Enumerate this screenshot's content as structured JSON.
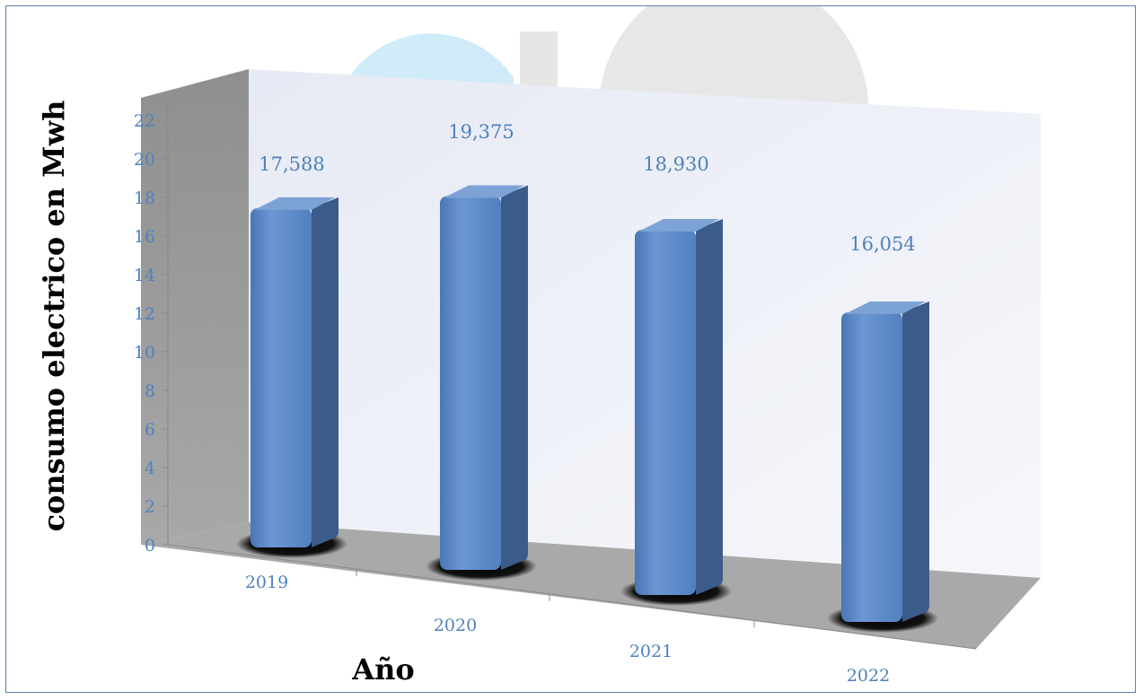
{
  "chart_data": {
    "type": "bar",
    "style": "3d-column",
    "categories": [
      "2019",
      "2020",
      "2021",
      "2022"
    ],
    "values": [
      17.588,
      19.375,
      18.93,
      16.054
    ],
    "data_labels": [
      "17,588",
      "19,375",
      "18,930",
      "16,054"
    ],
    "xlabel": "Año",
    "ylabel": "consumo electrico en Mwh",
    "ylim": [
      0,
      22
    ],
    "yticks": [
      "0",
      "2",
      "4",
      "6",
      "8",
      "10",
      "12",
      "14",
      "16",
      "18",
      "20",
      "22"
    ],
    "grid": false,
    "legend": "none",
    "colors": {
      "bar_front": "#5a87c5",
      "bar_side": "#3b5b8a",
      "bar_top": "#7da3d6",
      "back_wall": "#eef1f8",
      "side_wall": "#999999",
      "floor": "#a9a9a9",
      "labels": "#4f81bd"
    }
  }
}
